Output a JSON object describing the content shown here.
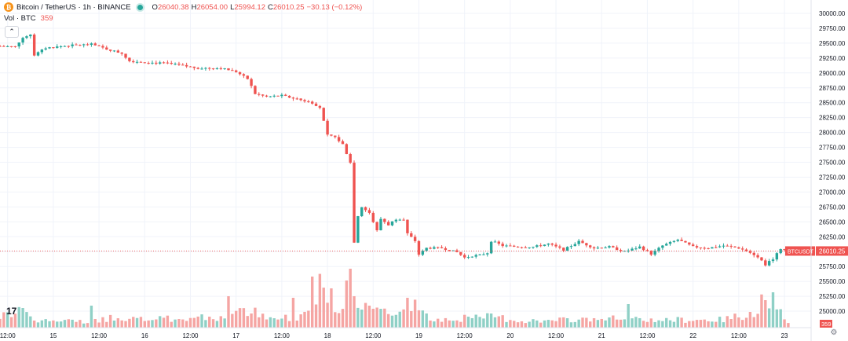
{
  "legend": {
    "symbol_icon": "bitcoin-icon",
    "symbol_icon_glyph": "₿",
    "symbol_title": "Bitcoin / TetherUS · 1h · BINANCE",
    "status": "live-dot-icon",
    "o_label": "O",
    "o_value": "26040.38",
    "h_label": "H",
    "h_value": "26054.00",
    "l_label": "L",
    "l_value": "25994.12",
    "c_label": "C",
    "c_value": "26010.25",
    "change": "−30.13 (−0.12%)"
  },
  "volume_legend": {
    "title": "Vol · BTC",
    "value": "359"
  },
  "controls": {
    "collapse_glyph": "⌃",
    "logo_text": "17",
    "settings_icon": "gear-icon",
    "settings_glyph": "⚙"
  },
  "colors": {
    "up": "#26a69a",
    "down": "#ef5350",
    "up_volume": "#8fd0c6",
    "down_volume": "#f5a5a3",
    "grid": "#f0f3fa",
    "axis_text": "#131722"
  },
  "chart_data": {
    "type": "candlestick",
    "title": "Bitcoin / TetherUS · 1h · BINANCE",
    "interval": "1h",
    "ylim": [
      24750,
      30000
    ],
    "y_ticks": [
      25000,
      25250,
      25500,
      25750,
      26000,
      26250,
      26500,
      26750,
      27000,
      27250,
      27500,
      27750,
      28000,
      28250,
      28500,
      28750,
      29000,
      29250,
      29500,
      29750,
      30000
    ],
    "y_tick_labels": [
      "25000.00",
      "25250.00",
      "25500.00",
      "25750.00",
      "26000.00",
      "26250.00",
      "26500.00",
      "26750.00",
      "27000.00",
      "27250.00",
      "27500.00",
      "27750.00",
      "28000.00",
      "28250.00",
      "28500.00",
      "28750.00",
      "29000.00",
      "29250.00",
      "29500.00",
      "29750.00",
      "30000.00"
    ],
    "x_tick_labels": [
      "12:00",
      "15",
      "12:00",
      "16",
      "12:00",
      "17",
      "12:00",
      "18",
      "12:00",
      "19",
      "12:00",
      "20",
      "12:00",
      "21",
      "12:00",
      "22",
      "12:00",
      "23"
    ],
    "x_tick_hours": [
      -12,
      0,
      12,
      24,
      36,
      48,
      60,
      72,
      84,
      96,
      108,
      120,
      132,
      144,
      156,
      168,
      180,
      192
    ],
    "x_start_hour": -14,
    "x_end_hour": 199,
    "current_price": 26010.25,
    "current_price_label": "26010.25",
    "symbol_tag": "BTCUSDT",
    "volume_label": "359",
    "grid": true,
    "keypoints": [
      [
        -14,
        29450
      ],
      [
        -10,
        29440
      ],
      [
        -8,
        29600
      ],
      [
        -6,
        29650
      ],
      [
        -5,
        29300
      ],
      [
        -2,
        29420
      ],
      [
        4,
        29460
      ],
      [
        10,
        29480
      ],
      [
        14,
        29400
      ],
      [
        18,
        29330
      ],
      [
        20,
        29200
      ],
      [
        26,
        29170
      ],
      [
        30,
        29160
      ],
      [
        34,
        29120
      ],
      [
        38,
        29080
      ],
      [
        44,
        29080
      ],
      [
        48,
        29020
      ],
      [
        51,
        28900
      ],
      [
        53,
        28650
      ],
      [
        56,
        28600
      ],
      [
        60,
        28620
      ],
      [
        64,
        28560
      ],
      [
        68,
        28500
      ],
      [
        70,
        28420
      ],
      [
        72,
        27950
      ],
      [
        74,
        27920
      ],
      [
        76,
        27800
      ],
      [
        78,
        27500
      ],
      [
        79,
        26150
      ],
      [
        80,
        26600
      ],
      [
        81,
        26750
      ],
      [
        83,
        26650
      ],
      [
        84,
        26500
      ],
      [
        85,
        26350
      ],
      [
        86,
        26550
      ],
      [
        88,
        26450
      ],
      [
        90,
        26550
      ],
      [
        92,
        26550
      ],
      [
        93,
        26300
      ],
      [
        95,
        26180
      ],
      [
        96,
        25950
      ],
      [
        98,
        26060
      ],
      [
        102,
        26060
      ],
      [
        106,
        25990
      ],
      [
        108,
        25900
      ],
      [
        110,
        25930
      ],
      [
        112,
        25940
      ],
      [
        114,
        25980
      ],
      [
        115,
        26180
      ],
      [
        118,
        26100
      ],
      [
        122,
        26080
      ],
      [
        126,
        26080
      ],
      [
        130,
        26130
      ],
      [
        134,
        26030
      ],
      [
        138,
        26170
      ],
      [
        142,
        26060
      ],
      [
        146,
        26080
      ],
      [
        150,
        26000
      ],
      [
        154,
        26080
      ],
      [
        157,
        25960
      ],
      [
        160,
        26100
      ],
      [
        164,
        26200
      ],
      [
        168,
        26080
      ],
      [
        172,
        26060
      ],
      [
        176,
        26100
      ],
      [
        180,
        26060
      ],
      [
        182,
        26010
      ],
      [
        184,
        25950
      ],
      [
        186,
        25850
      ],
      [
        187,
        25780
      ],
      [
        189,
        25880
      ],
      [
        191,
        26050
      ],
      [
        192,
        26030
      ],
      [
        193,
        26010
      ]
    ],
    "volume_keypoints": [
      [
        -14,
        14
      ],
      [
        -8,
        20
      ],
      [
        -4,
        10
      ],
      [
        0,
        8
      ],
      [
        12,
        9
      ],
      [
        16,
        14
      ],
      [
        24,
        10
      ],
      [
        36,
        12
      ],
      [
        44,
        14
      ],
      [
        48,
        18
      ],
      [
        52,
        22
      ],
      [
        56,
        10
      ],
      [
        64,
        14
      ],
      [
        70,
        50
      ],
      [
        72,
        30
      ],
      [
        74,
        22
      ],
      [
        76,
        30
      ],
      [
        78,
        95
      ],
      [
        79,
        60
      ],
      [
        80,
        35
      ],
      [
        84,
        30
      ],
      [
        88,
        18
      ],
      [
        92,
        20
      ],
      [
        96,
        30
      ],
      [
        100,
        10
      ],
      [
        108,
        12
      ],
      [
        112,
        12
      ],
      [
        116,
        15
      ],
      [
        120,
        10
      ],
      [
        128,
        8
      ],
      [
        136,
        10
      ],
      [
        144,
        12
      ],
      [
        152,
        10
      ],
      [
        160,
        10
      ],
      [
        168,
        10
      ],
      [
        176,
        10
      ],
      [
        184,
        20
      ],
      [
        187,
        45
      ],
      [
        189,
        30
      ],
      [
        193,
        6
      ]
    ],
    "volume_spikes": [
      [
        -8,
        25
      ],
      [
        10,
        28
      ],
      [
        46,
        40
      ],
      [
        63,
        38
      ],
      [
        68,
        65
      ],
      [
        73,
        50
      ],
      [
        77,
        60
      ],
      [
        78,
        75
      ],
      [
        79,
        40
      ],
      [
        83,
        28
      ],
      [
        93,
        38
      ],
      [
        151,
        30
      ],
      [
        183,
        20
      ],
      [
        187,
        35
      ],
      [
        189,
        45
      ]
    ],
    "x_axis_label": "",
    "y_axis_label": ""
  }
}
